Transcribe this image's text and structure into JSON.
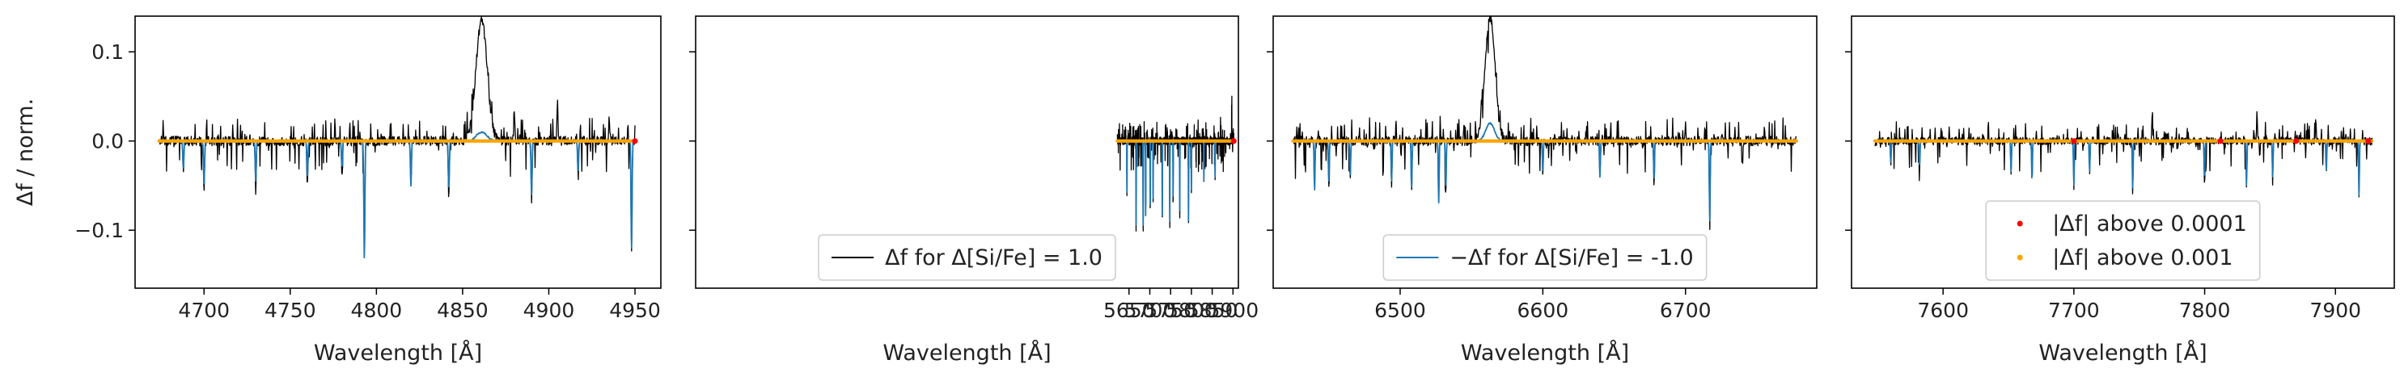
{
  "chart_data": [
    {
      "type": "line",
      "xlabel": "Wavelength [Å]",
      "ylabel": "Δf / norm.",
      "xlim": [
        4660,
        4965
      ],
      "ylim": [
        -0.165,
        0.14
      ],
      "xticks": [
        4700,
        4750,
        4800,
        4850,
        4900,
        4950
      ],
      "yticks": [
        -0.1,
        0.0,
        0.1
      ],
      "ytick_labels": [
        "−0.1",
        "0.0",
        "0.1"
      ],
      "show_ytick_labels": true,
      "spectrum_range": [
        4674,
        4950
      ],
      "series": [
        {
          "name": "Δf for Δ[Si/Fe] = 1.0",
          "color": "#000000",
          "role": "positive",
          "noise_amplitude": 0.012,
          "dense_spikes": true,
          "features": [
            [
              4861,
              0.138,
              3.2
            ],
            [
              4793,
              -0.135,
              0.3
            ],
            [
              4948,
              -0.128,
              0.3
            ],
            [
              4700,
              -0.06,
              0.3
            ],
            [
              4730,
              -0.055,
              0.3
            ],
            [
              4760,
              -0.05,
              0.3
            ],
            [
              4820,
              -0.06,
              0.3
            ],
            [
              4842,
              -0.065,
              0.3
            ],
            [
              4890,
              -0.07,
              0.3
            ],
            [
              4917,
              -0.045,
              0.3
            ],
            [
              4688,
              -0.035,
              0.3
            ],
            [
              4780,
              -0.04,
              0.3
            ],
            [
              4905,
              0.045,
              0.3
            ],
            [
              4880,
              0.04,
              0.3
            ],
            [
              4935,
              0.03,
              0.3
            ]
          ]
        },
        {
          "name": "−Δf for Δ[Si/Fe] = -1.0",
          "color": "#1f77b4",
          "role": "negative",
          "features": [
            [
              4861,
              0.01,
              3.0
            ],
            [
              4793,
              -0.135,
              0.3
            ],
            [
              4948,
              -0.12,
              0.3
            ],
            [
              4700,
              -0.05,
              0.3
            ],
            [
              4730,
              -0.045,
              0.3
            ],
            [
              4760,
              -0.04,
              0.3
            ],
            [
              4820,
              -0.05,
              0.3
            ],
            [
              4842,
              -0.055,
              0.3
            ],
            [
              4890,
              -0.06,
              0.3
            ],
            [
              4917,
              -0.035,
              0.3
            ],
            [
              4688,
              -0.03,
              0.3
            ],
            [
              4780,
              -0.03,
              0.3
            ]
          ]
        },
        {
          "name": "|Δf| above 0.001",
          "color": "#ffa500",
          "role": "orange-points",
          "segments": [
            [
              4674,
              4950
            ]
          ]
        },
        {
          "name": "|Δf| above 0.0001",
          "color": "#ff0000",
          "role": "red-points",
          "points": [
            4950
          ]
        }
      ]
    },
    {
      "type": "line",
      "xlabel": "Wavelength [Å]",
      "ylabel": "",
      "xlim": [
        4608,
        5913
      ],
      "ylim": [
        -0.165,
        0.14
      ],
      "xticks": [
        5650,
        5700,
        5750,
        5800,
        5850,
        5900
      ],
      "yticks": [
        -0.1,
        0.0,
        0.1
      ],
      "show_ytick_labels": false,
      "spectrum_range": [
        5622,
        5902
      ],
      "series": [
        {
          "name": "Δf for Δ[Si/Fe] = 1.0",
          "color": "#000000",
          "role": "positive",
          "noise_amplitude": 0.01,
          "dense_spikes": true,
          "features": [
            [
              5645,
              -0.065,
              0.3
            ],
            [
              5667,
              -0.1,
              0.3
            ],
            [
              5684,
              -0.105,
              0.3
            ],
            [
              5690,
              -0.09,
              0.3
            ],
            [
              5701,
              -0.08,
              0.3
            ],
            [
              5708,
              -0.07,
              0.3
            ],
            [
              5730,
              -0.09,
              0.3
            ],
            [
              5748,
              -0.095,
              0.3
            ],
            [
              5756,
              -0.07,
              0.3
            ],
            [
              5772,
              -0.085,
              0.3
            ],
            [
              5793,
              -0.095,
              0.3
            ],
            [
              5800,
              -0.06,
              0.3
            ],
            [
              5830,
              -0.05,
              0.3
            ],
            [
              5857,
              -0.045,
              0.3
            ],
            [
              5897,
              0.035,
              0.3
            ],
            [
              5870,
              0.025,
              0.3
            ]
          ]
        },
        {
          "name": "−Δf for Δ[Si/Fe] = -1.0",
          "color": "#1f77b4",
          "role": "negative",
          "features": [
            [
              5645,
              -0.06,
              0.3
            ],
            [
              5667,
              -0.095,
              0.3
            ],
            [
              5684,
              -0.1,
              0.3
            ],
            [
              5690,
              -0.085,
              0.3
            ],
            [
              5701,
              -0.075,
              0.3
            ],
            [
              5708,
              -0.065,
              0.3
            ],
            [
              5730,
              -0.085,
              0.3
            ],
            [
              5748,
              -0.09,
              0.3
            ],
            [
              5756,
              -0.065,
              0.3
            ],
            [
              5772,
              -0.08,
              0.3
            ],
            [
              5793,
              -0.09,
              0.3
            ],
            [
              5800,
              -0.055,
              0.3
            ],
            [
              5830,
              -0.045,
              0.3
            ],
            [
              5857,
              -0.04,
              0.3
            ]
          ]
        },
        {
          "name": "|Δf| above 0.001",
          "color": "#ffa500",
          "role": "orange-points",
          "segments": [
            [
              5622,
              5902
            ]
          ]
        },
        {
          "name": "|Δf| above 0.0001",
          "color": "#ff0000",
          "role": "red-points",
          "points": [
            5902
          ]
        }
      ],
      "legend": {
        "placement": "lower center",
        "entries": [
          {
            "label": "Δf for Δ[Si/Fe] = 1.0",
            "color": "#000000",
            "marker": "line"
          }
        ]
      }
    },
    {
      "type": "line",
      "xlabel": "Wavelength [Å]",
      "ylabel": "",
      "xlim": [
        6411,
        6792
      ],
      "ylim": [
        -0.165,
        0.14
      ],
      "xticks": [
        6500,
        6600,
        6700
      ],
      "yticks": [
        -0.1,
        0.0,
        0.1
      ],
      "show_ytick_labels": false,
      "spectrum_range": [
        6425,
        6778
      ],
      "series": [
        {
          "name": "Δf for Δ[Si/Fe] = 1.0",
          "color": "#000000",
          "role": "positive",
          "noise_amplitude": 0.012,
          "dense_spikes": true,
          "features": [
            [
              6563,
              0.14,
              3.5
            ],
            [
              6440,
              -0.06,
              0.3
            ],
            [
              6450,
              -0.05,
              0.3
            ],
            [
              6465,
              -0.045,
              0.3
            ],
            [
              6494,
              -0.05,
              0.3
            ],
            [
              6508,
              -0.06,
              0.3
            ],
            [
              6527,
              -0.075,
              0.3
            ],
            [
              6532,
              -0.06,
              0.3
            ],
            [
              6600,
              -0.04,
              0.3
            ],
            [
              6640,
              -0.045,
              0.3
            ],
            [
              6678,
              -0.05,
              0.3
            ],
            [
              6717,
              -0.095,
              0.3
            ],
            [
              6740,
              -0.03,
              0.3
            ],
            [
              6700,
              0.025,
              0.3
            ]
          ]
        },
        {
          "name": "−Δf for Δ[Si/Fe] = -1.0",
          "color": "#1f77b4",
          "role": "negative",
          "features": [
            [
              6563,
              0.02,
              3.0
            ],
            [
              6440,
              -0.055,
              0.3
            ],
            [
              6450,
              -0.045,
              0.3
            ],
            [
              6465,
              -0.04,
              0.3
            ],
            [
              6494,
              -0.045,
              0.3
            ],
            [
              6508,
              -0.055,
              0.3
            ],
            [
              6527,
              -0.07,
              0.3
            ],
            [
              6532,
              -0.055,
              0.3
            ],
            [
              6600,
              -0.035,
              0.3
            ],
            [
              6640,
              -0.04,
              0.3
            ],
            [
              6678,
              -0.045,
              0.3
            ],
            [
              6717,
              -0.09,
              0.3
            ]
          ]
        },
        {
          "name": "|Δf| above 0.001",
          "color": "#ffa500",
          "role": "orange-points",
          "segments": [
            [
              6425,
              6778
            ]
          ]
        },
        {
          "name": "|Δf| above 0.0001",
          "color": "#ff0000",
          "role": "red-points",
          "points": []
        }
      ],
      "legend": {
        "placement": "lower center",
        "entries": [
          {
            "label": "−Δf for Δ[Si/Fe] = -1.0",
            "color": "#1f77b4",
            "marker": "line"
          }
        ]
      }
    },
    {
      "type": "line",
      "xlabel": "Wavelength [Å]",
      "ylabel": "",
      "xlim": [
        7530,
        7945
      ],
      "ylim": [
        -0.165,
        0.14
      ],
      "xticks": [
        7600,
        7700,
        7800,
        7900
      ],
      "yticks": [
        -0.1,
        0.0,
        0.1
      ],
      "show_ytick_labels": false,
      "spectrum_range": [
        7548,
        7928
      ],
      "series": [
        {
          "name": "Δf for Δ[Si/Fe] = 1.0",
          "color": "#000000",
          "role": "positive",
          "noise_amplitude": 0.01,
          "dense_spikes": true,
          "features": [
            [
              7560,
              -0.03,
              0.3
            ],
            [
              7582,
              -0.035,
              0.3
            ],
            [
              7652,
              -0.04,
              0.3
            ],
            [
              7668,
              -0.05,
              0.3
            ],
            [
              7700,
              -0.055,
              0.3
            ],
            [
              7712,
              -0.04,
              0.3
            ],
            [
              7745,
              -0.06,
              0.3
            ],
            [
              7800,
              -0.05,
              0.3
            ],
            [
              7832,
              -0.055,
              0.3
            ],
            [
              7852,
              -0.045,
              0.3
            ],
            [
              7893,
              -0.04,
              0.3
            ],
            [
              7918,
              -0.065,
              0.3
            ],
            [
              7760,
              0.035,
              0.3
            ],
            [
              7840,
              0.03,
              0.3
            ],
            [
              7885,
              0.025,
              0.3
            ]
          ]
        },
        {
          "name": "−Δf for Δ[Si/Fe] = -1.0",
          "color": "#1f77b4",
          "role": "negative",
          "features": [
            [
              7560,
              -0.025,
              0.3
            ],
            [
              7582,
              -0.03,
              0.3
            ],
            [
              7652,
              -0.035,
              0.3
            ],
            [
              7668,
              -0.045,
              0.3
            ],
            [
              7700,
              -0.05,
              0.3
            ],
            [
              7712,
              -0.035,
              0.3
            ],
            [
              7745,
              -0.055,
              0.3
            ],
            [
              7800,
              -0.045,
              0.3
            ],
            [
              7832,
              -0.05,
              0.3
            ],
            [
              7852,
              -0.04,
              0.3
            ],
            [
              7893,
              -0.035,
              0.3
            ],
            [
              7918,
              -0.06,
              0.3
            ]
          ]
        },
        {
          "name": "|Δf| above 0.001",
          "color": "#ffa500",
          "role": "orange-points",
          "segments": [
            [
              7548,
              7928
            ]
          ]
        },
        {
          "name": "|Δf| above 0.0001",
          "color": "#ff0000",
          "role": "red-points",
          "points": [
            7700,
            7812,
            7870,
            7925
          ]
        }
      ],
      "legend": {
        "placement": "lower center",
        "entries": [
          {
            "label": "|Δf| above 0.0001",
            "color": "#ff0000",
            "marker": "point"
          },
          {
            "label": "|Δf| above 0.001",
            "color": "#ffa500",
            "marker": "point"
          }
        ]
      }
    }
  ]
}
